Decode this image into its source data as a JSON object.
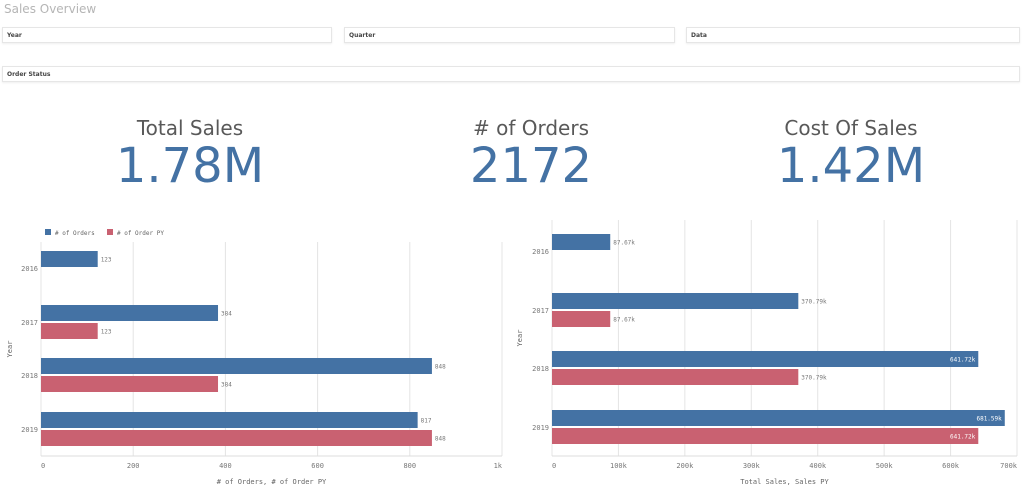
{
  "page_title": "Sales Overview",
  "filters": [
    "Year",
    "Quarter",
    "Data",
    "Order Status"
  ],
  "kpis": [
    {
      "label": "Total Sales",
      "value": "1.78M"
    },
    {
      "label": "# of Orders",
      "value": "2172"
    },
    {
      "label": "Cost Of Sales",
      "value": "1.42M"
    }
  ],
  "colors": {
    "current": "#4472a4",
    "previous": "#c96171"
  },
  "chart_data": [
    {
      "type": "bar",
      "orientation": "horizontal",
      "categories": [
        "2016",
        "2017",
        "2018",
        "2019"
      ],
      "series": [
        {
          "name": "# of Orders",
          "values": [
            123,
            384,
            848,
            817
          ],
          "labels": [
            "123",
            "384",
            "848",
            "817"
          ]
        },
        {
          "name": "# of Order PY",
          "values": [
            null,
            123,
            384,
            848
          ],
          "labels": [
            "",
            "123",
            "384",
            "848"
          ]
        }
      ],
      "xlabel": "# of Orders, # of Order PY",
      "ylabel": "Year",
      "xlim": [
        0,
        1000
      ],
      "ticks": [
        "0",
        "200",
        "400",
        "600",
        "800",
        "1k"
      ],
      "tick_values": [
        0,
        200,
        400,
        600,
        800,
        1000
      ],
      "legend": "top-left",
      "grid": true
    },
    {
      "type": "bar",
      "orientation": "horizontal",
      "categories": [
        "2016",
        "2017",
        "2018",
        "2019"
      ],
      "series": [
        {
          "name": "Total Sales",
          "values": [
            87670,
            370790,
            641720,
            681590
          ],
          "labels": [
            "87.67k",
            "370.79k",
            "641.72k",
            "681.59k"
          ]
        },
        {
          "name": "Sales PY",
          "values": [
            null,
            87670,
            370790,
            641720
          ],
          "labels": [
            "",
            "87.67k",
            "370.79k",
            "641.72k"
          ]
        }
      ],
      "xlabel": "Total Sales, Sales PY",
      "ylabel": "Year",
      "xlim": [
        0,
        700000
      ],
      "ticks": [
        "0",
        "100k",
        "200k",
        "300k",
        "400k",
        "500k",
        "600k",
        "700k"
      ],
      "tick_values": [
        0,
        100000,
        200000,
        300000,
        400000,
        500000,
        600000,
        700000
      ],
      "grid": true
    }
  ]
}
